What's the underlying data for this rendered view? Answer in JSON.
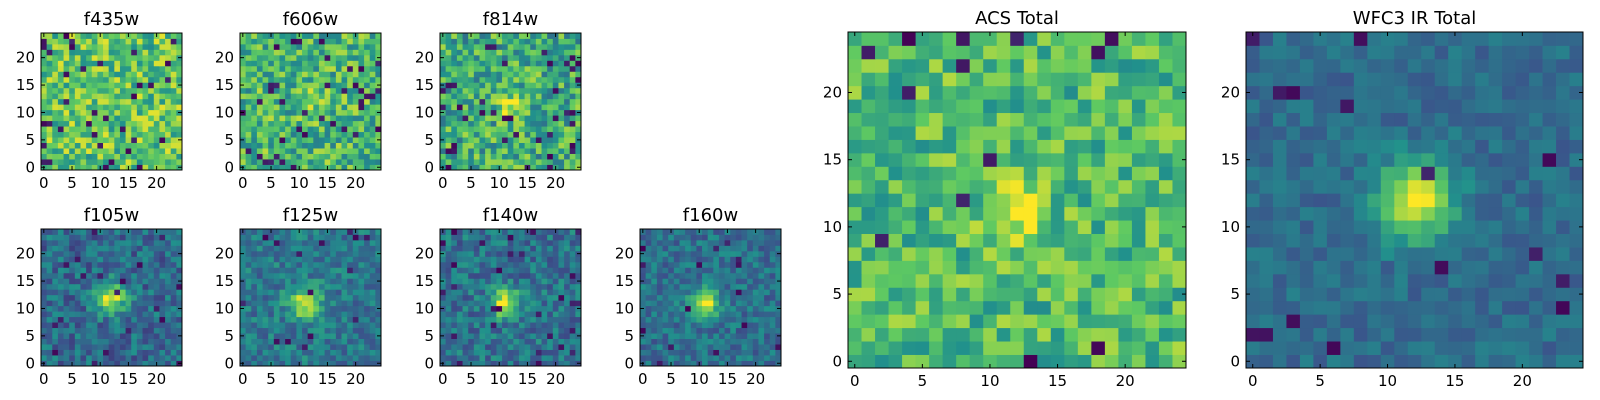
{
  "figure": {
    "colormap": [
      "#440154",
      "#3b528b",
      "#21918c",
      "#5ec962",
      "#fde725"
    ]
  },
  "chart_data": [
    {
      "type": "heatmap",
      "title": "f435w",
      "x_ticks": [
        0,
        5,
        10,
        15,
        20
      ],
      "y_ticks": [
        0,
        5,
        10,
        15,
        20
      ],
      "xlim": [
        0,
        25
      ],
      "ylim": [
        0,
        25
      ],
      "grid": false,
      "source": {
        "center": [
          12,
          12
        ],
        "peak": 0.0,
        "sigma": 2.0,
        "background": 0.72,
        "noise": 0.24,
        "seed": 11,
        "dark_fraction": 0.05
      }
    },
    {
      "type": "heatmap",
      "title": "f606w",
      "x_ticks": [
        0,
        5,
        10,
        15,
        20
      ],
      "y_ticks": [
        0,
        5,
        10,
        15,
        20
      ],
      "xlim": [
        0,
        25
      ],
      "ylim": [
        0,
        25
      ],
      "grid": false,
      "source": {
        "center": [
          12,
          12
        ],
        "peak": 0.2,
        "sigma": 1.6,
        "background": 0.66,
        "noise": 0.24,
        "seed": 23,
        "dark_fraction": 0.05
      }
    },
    {
      "type": "heatmap",
      "title": "f814w",
      "x_ticks": [
        0,
        5,
        10,
        15,
        20
      ],
      "y_ticks": [
        0,
        5,
        10,
        15,
        20
      ],
      "xlim": [
        0,
        25
      ],
      "ylim": [
        0,
        25
      ],
      "grid": false,
      "source": {
        "center": [
          12,
          11
        ],
        "peak": 0.3,
        "sigma": 1.6,
        "background": 0.62,
        "noise": 0.25,
        "seed": 37,
        "dark_fraction": 0.06
      }
    },
    {
      "type": "heatmap",
      "title": "f105w",
      "x_ticks": [
        0,
        5,
        10,
        15,
        20
      ],
      "y_ticks": [
        0,
        5,
        10,
        15,
        20
      ],
      "xlim": [
        0,
        25
      ],
      "ylim": [
        0,
        25
      ],
      "grid": false,
      "source": {
        "center": [
          12,
          12
        ],
        "peak": 0.6,
        "sigma": 1.9,
        "background": 0.35,
        "noise": 0.16,
        "seed": 41,
        "dark_fraction": 0.04
      }
    },
    {
      "type": "heatmap",
      "title": "f125w",
      "x_ticks": [
        0,
        5,
        10,
        15,
        20
      ],
      "y_ticks": [
        0,
        5,
        10,
        15,
        20
      ],
      "xlim": [
        0,
        25
      ],
      "ylim": [
        0,
        25
      ],
      "grid": false,
      "source": {
        "center": [
          11,
          11
        ],
        "peak": 0.55,
        "sigma": 2.0,
        "background": 0.4,
        "noise": 0.15,
        "seed": 53,
        "dark_fraction": 0.03
      }
    },
    {
      "type": "heatmap",
      "title": "f140w",
      "x_ticks": [
        0,
        5,
        10,
        15,
        20
      ],
      "y_ticks": [
        0,
        5,
        10,
        15,
        20
      ],
      "xlim": [
        0,
        25
      ],
      "ylim": [
        0,
        25
      ],
      "grid": false,
      "source": {
        "center": [
          11,
          11
        ],
        "peak": 0.6,
        "sigma": 1.8,
        "background": 0.38,
        "noise": 0.16,
        "seed": 67,
        "dark_fraction": 0.04
      }
    },
    {
      "type": "heatmap",
      "title": "f160w",
      "x_ticks": [
        0,
        5,
        10,
        15,
        20
      ],
      "y_ticks": [
        0,
        5,
        10,
        15,
        20
      ],
      "xlim": [
        0,
        25
      ],
      "ylim": [
        0,
        25
      ],
      "grid": false,
      "source": {
        "center": [
          11,
          11
        ],
        "peak": 0.62,
        "sigma": 1.8,
        "background": 0.37,
        "noise": 0.14,
        "seed": 79,
        "dark_fraction": 0.03
      }
    },
    {
      "type": "heatmap",
      "title": "ACS Total",
      "x_ticks": [
        0,
        5,
        10,
        15,
        20
      ],
      "y_ticks": [
        0,
        5,
        10,
        15,
        20
      ],
      "xlim": [
        0,
        25
      ],
      "ylim": [
        0,
        25
      ],
      "grid": false,
      "source": {
        "center": [
          12,
          11
        ],
        "peak": 0.3,
        "sigma": 1.6,
        "background": 0.68,
        "noise": 0.2,
        "seed": 97,
        "dark_fraction": 0.03
      }
    },
    {
      "type": "heatmap",
      "title": "WFC3 IR Total",
      "x_ticks": [
        0,
        5,
        10,
        15,
        20
      ],
      "y_ticks": [
        0,
        5,
        10,
        15,
        20
      ],
      "xlim": [
        0,
        25
      ],
      "ylim": [
        0,
        25
      ],
      "grid": false,
      "source": {
        "center": [
          12,
          12
        ],
        "peak": 0.65,
        "sigma": 2.0,
        "background": 0.35,
        "noise": 0.09,
        "seed": 113,
        "dark_fraction": 0.02
      }
    }
  ]
}
